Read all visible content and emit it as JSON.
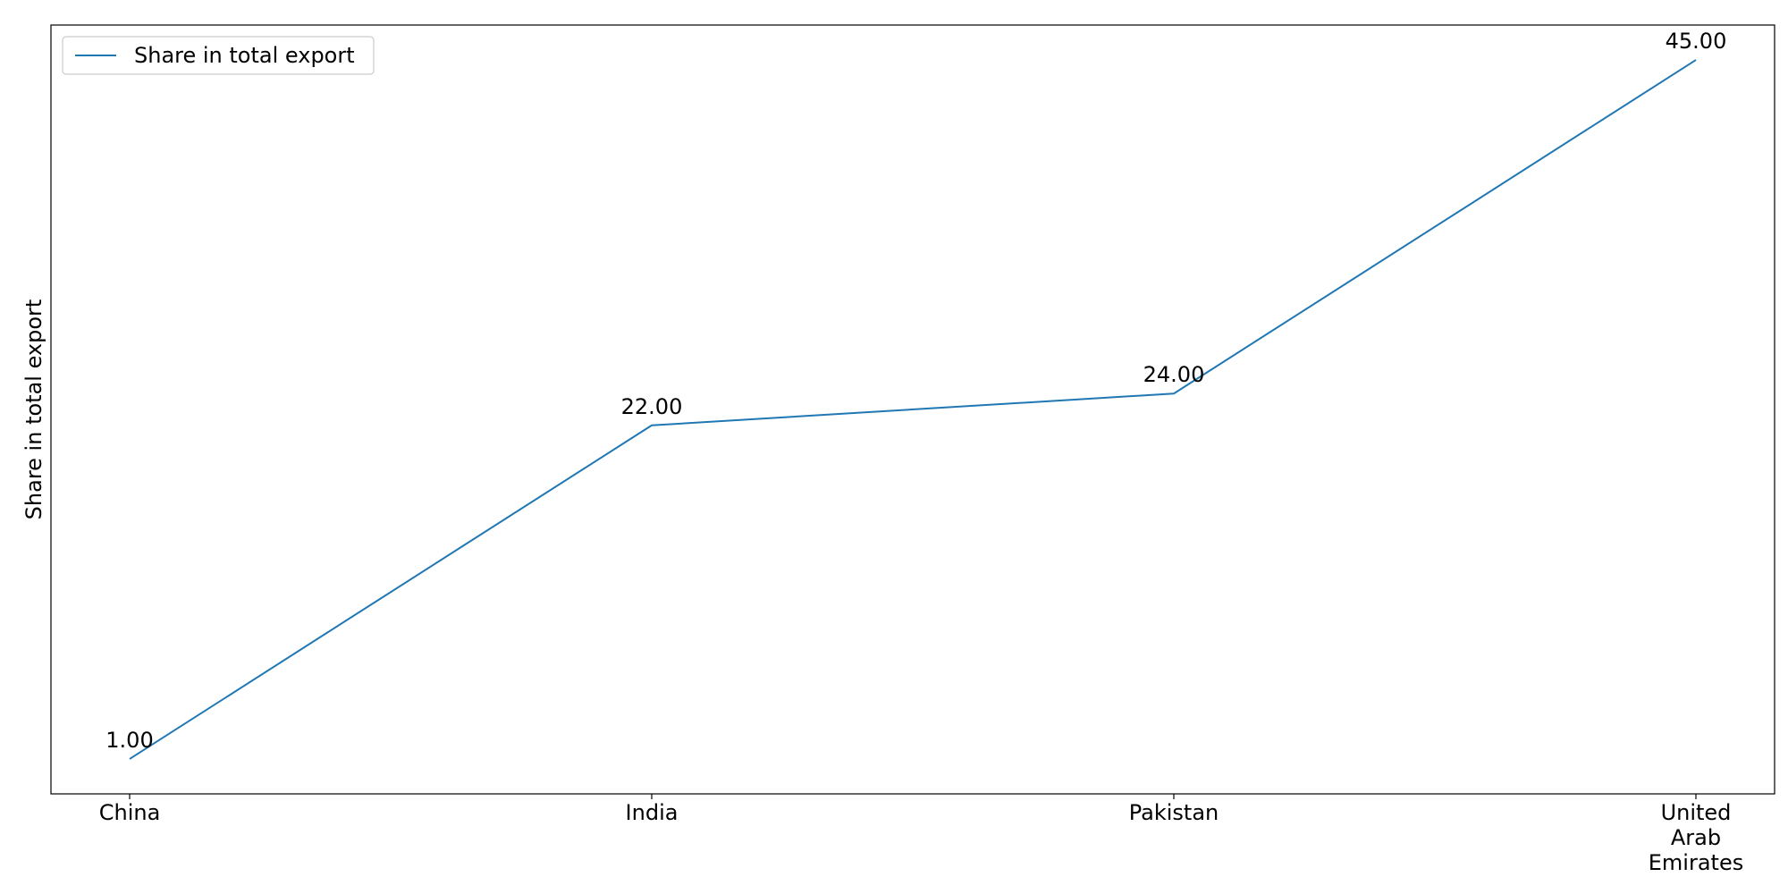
{
  "chart_data": {
    "type": "line",
    "title": "",
    "xlabel": "",
    "ylabel": "Share in total export",
    "categories": [
      [
        "China"
      ],
      [
        "India"
      ],
      [
        "Pakistan"
      ],
      [
        "United",
        "Arab",
        "Emirates"
      ]
    ],
    "series": [
      {
        "name": "Share in total export",
        "values": [
          1,
          22,
          24,
          45
        ],
        "data_labels": [
          "1.00",
          "22.00",
          "24.00",
          "45.00"
        ],
        "color": "#1f77b4"
      }
    ],
    "ylim": [
      -1.2,
      47.2
    ],
    "y_ticks_visible": false,
    "grid": false,
    "legend_position": "upper-left"
  }
}
